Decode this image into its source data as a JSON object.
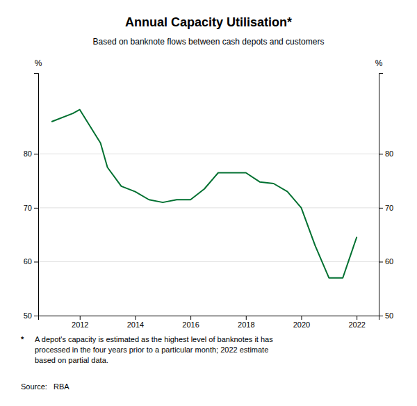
{
  "chart_data": {
    "type": "line",
    "title": "Annual Capacity Utilisation*",
    "subtitle": "Based on banknote flows between cash depots and customers",
    "ylabel": "%",
    "y2label": "%",
    "x": [
      2011,
      2011.75,
      2012,
      2012.75,
      2013,
      2013.5,
      2014,
      2014.5,
      2015,
      2015.5,
      2016,
      2016.5,
      2017,
      2017.5,
      2018,
      2018.5,
      2019,
      2019.5,
      2020,
      2020.5,
      2021,
      2021.5,
      2022
    ],
    "values": [
      86.0,
      87.5,
      88.2,
      82.0,
      77.5,
      74.0,
      73.0,
      71.5,
      71.0,
      71.5,
      71.5,
      73.5,
      76.5,
      76.5,
      76.5,
      74.8,
      74.5,
      73.0,
      70.0,
      63.0,
      57.0,
      57.0,
      64.5
    ],
    "color": "#007030",
    "xlim": [
      2010.5,
      2022.8
    ],
    "ylim": [
      50,
      95
    ],
    "xticks": [
      2012,
      2014,
      2016,
      2018,
      2020,
      2022
    ],
    "yticks": [
      50,
      60,
      70,
      80
    ],
    "y2lim": [
      50,
      95
    ],
    "y2ticks": [
      50,
      60,
      70,
      80
    ],
    "grid": true,
    "annotations": [
      "*",
      "A depot's capacity is estimated as the highest level of banknotes it has\nprocessed in the four years prior to a particular month; 2022 estimate\nbased on partial data.",
      "Source:   RBA"
    ]
  }
}
